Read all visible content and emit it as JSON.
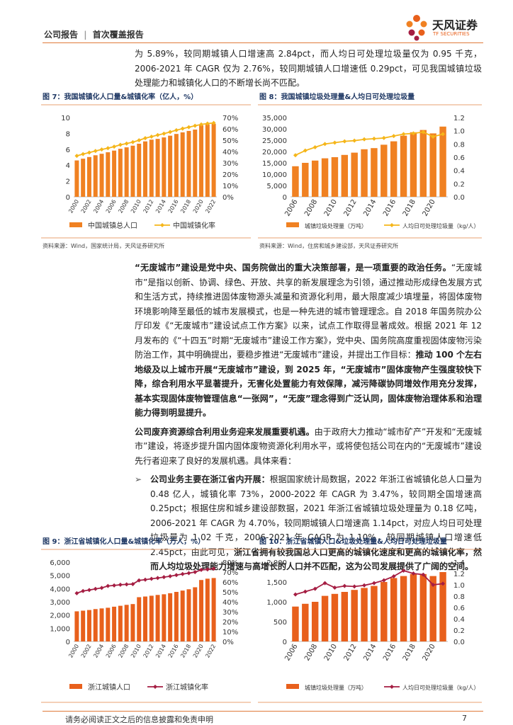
{
  "header": {
    "report_type": "公司报告",
    "separator": "|",
    "report_subtype": "首次覆盖报告",
    "logo_name": "天风证券",
    "logo_en": "TF SECURITIES"
  },
  "intro": "为 5.89%，较同期城镇人口增速高 2.84pct，而人均日可处理垃圾量仅为 0.95 千克，2006-2021 年 CAGR 仅为 2.76%，较同期城镇人口增速低 0.29pct，可见我国城镇垃圾处理能力和城镇化人口的不断增长尚不匹配。",
  "paragraphs": [
    [
      "“无废城市”建设是党中央、国务院做出的重大决策部署，是一项重要的政治任务。",
      "“无废城市”是指以创新、协调、绿色、开放、共享的新发展理念为引领，通过推动形成绿色发展方式和生活方式，持续推进固体废物源头减量和资源化利用，最大限度减少填埋量，将固体废物环境影响降至最低的城市发展模式，也是一种先进的城市管理理念。自 2018 年国务院办公厅印发《“无废城市”建设试点工作方案》以来，试点工作取得显著成效。根据 2021 年 12 月发布的《“十四五”时期“无废城市”建设工作方案》，党中央、国务院高度重视固体废物污染防治工作，其中明确提出，要稳步推进“无废城市”建设，并提出工作目标：",
      "推动 100 个左右地级及以上城市开展“无废城市”建设，到 2025 年，“无废城市”固体废物产生强度较快下降，综合利用水平显著提升，无害化处置能力有效保障，减污降碳协同增效作用充分发挥，基本实现固体废物管理信息“一张网”，“无废”理念得到广泛认同，固体废物治理体系和治理能力得到明显提升。"
    ],
    [
      "公司废弃资源综合利用业务迎来发展重要机遇。",
      "由于政府大力推动“城市矿产”开发和“无废城市”建设，将逐步提升国内固体废物资源化利用水平，或将使包括公司在内的“无废城市”建设先行者迎来了良好的发展机遇。具体来看："
    ],
    [
      "公司业务主要在浙江省内开展：",
      "根据国家统计局数据，2022 年浙江省城镇化总人口量为 0.48 亿人，城镇化率 73%，2000-2022 年 CAGR 为 3.47%，较同期全国增速高 0.25pct；根据住房和城乡建设部数据，2021 年浙江省城镇垃圾处理量为 0.18 亿吨，2006-2021 年 CAGR 为 4.70%，较同期城镇人口增速高 1.14pct，对应人均日可处理垃圾量为 1.02 千克，2006-2021 年 CAGR 为 1.10%，较同期城镇人口增速低 2.45pct，由此可见，",
      "浙江省拥有较我国总人口更高的城镇化速度和更高的城镇化率，然而人均垃圾处理能力增速与高增长的人口并不匹配，这为公司发展提供了广阔的空间。"
    ]
  ],
  "footer": {
    "disclaimer": "请务必阅读正文之后的信息披露和免责申明",
    "page": "7"
  },
  "chart_data": [
    {
      "type": "bar-line",
      "title": "图 7：我国城镇化人口量&城镇化率（亿人，%）",
      "source": "资料来源：Wind，国家统计局，天风证券研究所",
      "categories": [
        "2000",
        null,
        "2002",
        null,
        "2004",
        null,
        "2006",
        null,
        "2008",
        null,
        "2010",
        null,
        "2012",
        null,
        "2014",
        null,
        "2016",
        null,
        "2018",
        null,
        "2020",
        null,
        "2022"
      ],
      "series": [
        {
          "name": "中国城镇总人口",
          "color": "#f08122",
          "values": [
            4.59,
            4.81,
            5.02,
            5.24,
            5.43,
            5.62,
            5.83,
            6.06,
            6.24,
            6.45,
            6.7,
            6.99,
            7.21,
            7.31,
            7.49,
            7.71,
            7.93,
            8.13,
            8.31,
            8.48,
            9.02,
            9.14,
            9.21
          ]
        },
        {
          "name": "中国城镇化率",
          "color": "#f5b61a",
          "axis": "y2",
          "values": [
            36.2,
            37.7,
            39.1,
            40.5,
            41.8,
            43.0,
            44.3,
            45.9,
            47.0,
            48.3,
            49.9,
            51.8,
            53.1,
            54.5,
            55.8,
            57.3,
            58.8,
            60.2,
            61.5,
            62.7,
            63.9,
            64.7,
            65.2
          ]
        }
      ],
      "ylim": [
        0,
        10
      ],
      "yticks": [
        0,
        2,
        4,
        6,
        8,
        10
      ],
      "y2lim": [
        0,
        70
      ],
      "y2ticks": [
        {
          "value": 0,
          "label": "0%"
        },
        {
          "value": 10,
          "label": "10%"
        },
        {
          "value": 20,
          "label": "20%"
        },
        {
          "value": 30,
          "label": "30%"
        },
        {
          "value": 40,
          "label": "40%"
        },
        {
          "value": 50,
          "label": "50%"
        },
        {
          "value": 60,
          "label": "60%"
        },
        {
          "value": 70,
          "label": "70%"
        }
      ]
    },
    {
      "type": "bar-line",
      "title": "图 8：我国城镇垃圾处理量&人均日可处理垃圾量",
      "source": "资料来源：Wind，住房和城乡建设部，天风证券研究所",
      "categories": [
        "2006",
        null,
        "2008",
        null,
        "2010",
        null,
        "2012",
        null,
        "2014",
        null,
        "2016",
        null,
        "2018",
        null,
        "2020",
        null
      ],
      "series": [
        {
          "name": "城镇垃圾处理量（万吨）",
          "color": "#f08122",
          "values": [
            13500,
            15000,
            16000,
            17000,
            17500,
            18500,
            19500,
            21000,
            21500,
            23000,
            24500,
            27000,
            28500,
            29500,
            28000,
            31000
          ]
        },
        {
          "name": "人均日可处理垃圾量（kg/人）",
          "color": "#f5b61a",
          "axis": "y2",
          "values": [
            0.63,
            0.7,
            0.75,
            0.8,
            0.82,
            0.84,
            0.85,
            0.87,
            0.88,
            0.89,
            0.92,
            0.95,
            0.96,
            0.98,
            0.91,
            0.95
          ]
        }
      ],
      "ylim": [
        0,
        35000
      ],
      "yticks": [
        0,
        {
          "value": 5000,
          "label": "5,000"
        },
        {
          "value": 10000,
          "label": "10,000"
        },
        {
          "value": 15000,
          "label": "15,000"
        },
        {
          "value": 20000,
          "label": "20,000"
        },
        {
          "value": 25000,
          "label": "25,000"
        },
        {
          "value": 30000,
          "label": "30,000"
        },
        {
          "value": 35000,
          "label": "35,000"
        }
      ],
      "y2lim": [
        0,
        1.2
      ],
      "y2ticks": [
        {
          "value": 0,
          "label": "0.0"
        },
        0.2,
        0.4,
        0.6,
        0.8,
        {
          "value": 1,
          "label": "1.0"
        },
        1.2
      ]
    },
    {
      "type": "bar-line",
      "title": "图 9：浙江省城镇化人口量&城镇化率（万人，%）",
      "categories": [
        "2000",
        null,
        "2002",
        null,
        "2004",
        null,
        "2006",
        null,
        "2008",
        null,
        "2010",
        null,
        "2012",
        null,
        "2014",
        null,
        "2016",
        null,
        "2018",
        null,
        "2020",
        null,
        "2022"
      ],
      "series": [
        {
          "name": "浙江城镇人口",
          "color": "#e8601c",
          "values": [
            2280,
            2330,
            2380,
            2450,
            2500,
            2550,
            2630,
            2700,
            2770,
            2830,
            3350,
            3400,
            3460,
            3520,
            3570,
            3650,
            3750,
            3850,
            3950,
            4100,
            4650,
            4750,
            4800
          ]
        },
        {
          "name": "浙江城镇化率",
          "color": "#a51e43",
          "axis": "y2",
          "values": [
            48.7,
            50.9,
            51.9,
            53.0,
            54.0,
            56.0,
            56.5,
            57.2,
            57.6,
            57.9,
            61.6,
            62.3,
            63.2,
            64.0,
            64.9,
            65.8,
            67.0,
            68.0,
            68.9,
            70.0,
            72.2,
            72.7,
            73.4
          ]
        }
      ],
      "ylim": [
        0,
        6000
      ],
      "yticks": [
        0,
        {
          "value": 1000,
          "label": "1,000"
        },
        {
          "value": 2000,
          "label": "2,000"
        },
        {
          "value": 3000,
          "label": "3,000"
        },
        {
          "value": 4000,
          "label": "4,000"
        },
        {
          "value": 5000,
          "label": "5,000"
        },
        {
          "value": 6000,
          "label": "6,000"
        }
      ],
      "y2lim": [
        0,
        80
      ],
      "y2ticks": [
        {
          "value": 0,
          "label": "0%"
        },
        {
          "value": 10,
          "label": "10%"
        },
        {
          "value": 20,
          "label": "20%"
        },
        {
          "value": 30,
          "label": "30%"
        },
        {
          "value": 40,
          "label": "40%"
        },
        {
          "value": 50,
          "label": "50%"
        },
        {
          "value": 60,
          "label": "60%"
        },
        {
          "value": 70,
          "label": "70%"
        },
        {
          "value": 80,
          "label": "80%"
        }
      ]
    },
    {
      "type": "bar-line",
      "title": "图 10：浙江省城镇人口&垃圾处理量&人均日可处理垃圾量",
      "categories": [
        "2006",
        null,
        "2008",
        null,
        "2010",
        null,
        "2012",
        null,
        "2014",
        null,
        "2016",
        null,
        "2018",
        null,
        "2020",
        null
      ],
      "series": [
        {
          "name": "城镇垃圾处理量（万吨）",
          "color": "#e8601c",
          "values": [
            880,
            950,
            1000,
            1150,
            1200,
            1250,
            1300,
            1350,
            1400,
            1500,
            1600,
            1650,
            1700,
            1700,
            1650,
            1750
          ]
        },
        {
          "name": "人均日可处理垃圾量（kg/人）",
          "color": "#a51e43",
          "axis": "y2",
          "values": [
            0.83,
            0.88,
            0.93,
            1.03,
            0.95,
            0.98,
            0.97,
            0.99,
            1.03,
            1.08,
            1.15,
            1.25,
            1.2,
            1.18,
            1.0,
            1.02
          ]
        }
      ],
      "ylim": [
        0,
        2000
      ],
      "yticks": [
        0,
        500,
        {
          "value": 1000,
          "label": "1,000"
        },
        {
          "value": 1500,
          "label": "1,500"
        },
        {
          "value": 2000,
          "label": "2,000"
        }
      ],
      "y2lim": [
        0,
        1.4
      ],
      "y2ticks": [
        {
          "value": 0,
          "label": "0.0"
        },
        0.2,
        0.4,
        0.6,
        0.8,
        {
          "value": 1,
          "label": "1.0"
        },
        1.2,
        1.4
      ]
    }
  ]
}
